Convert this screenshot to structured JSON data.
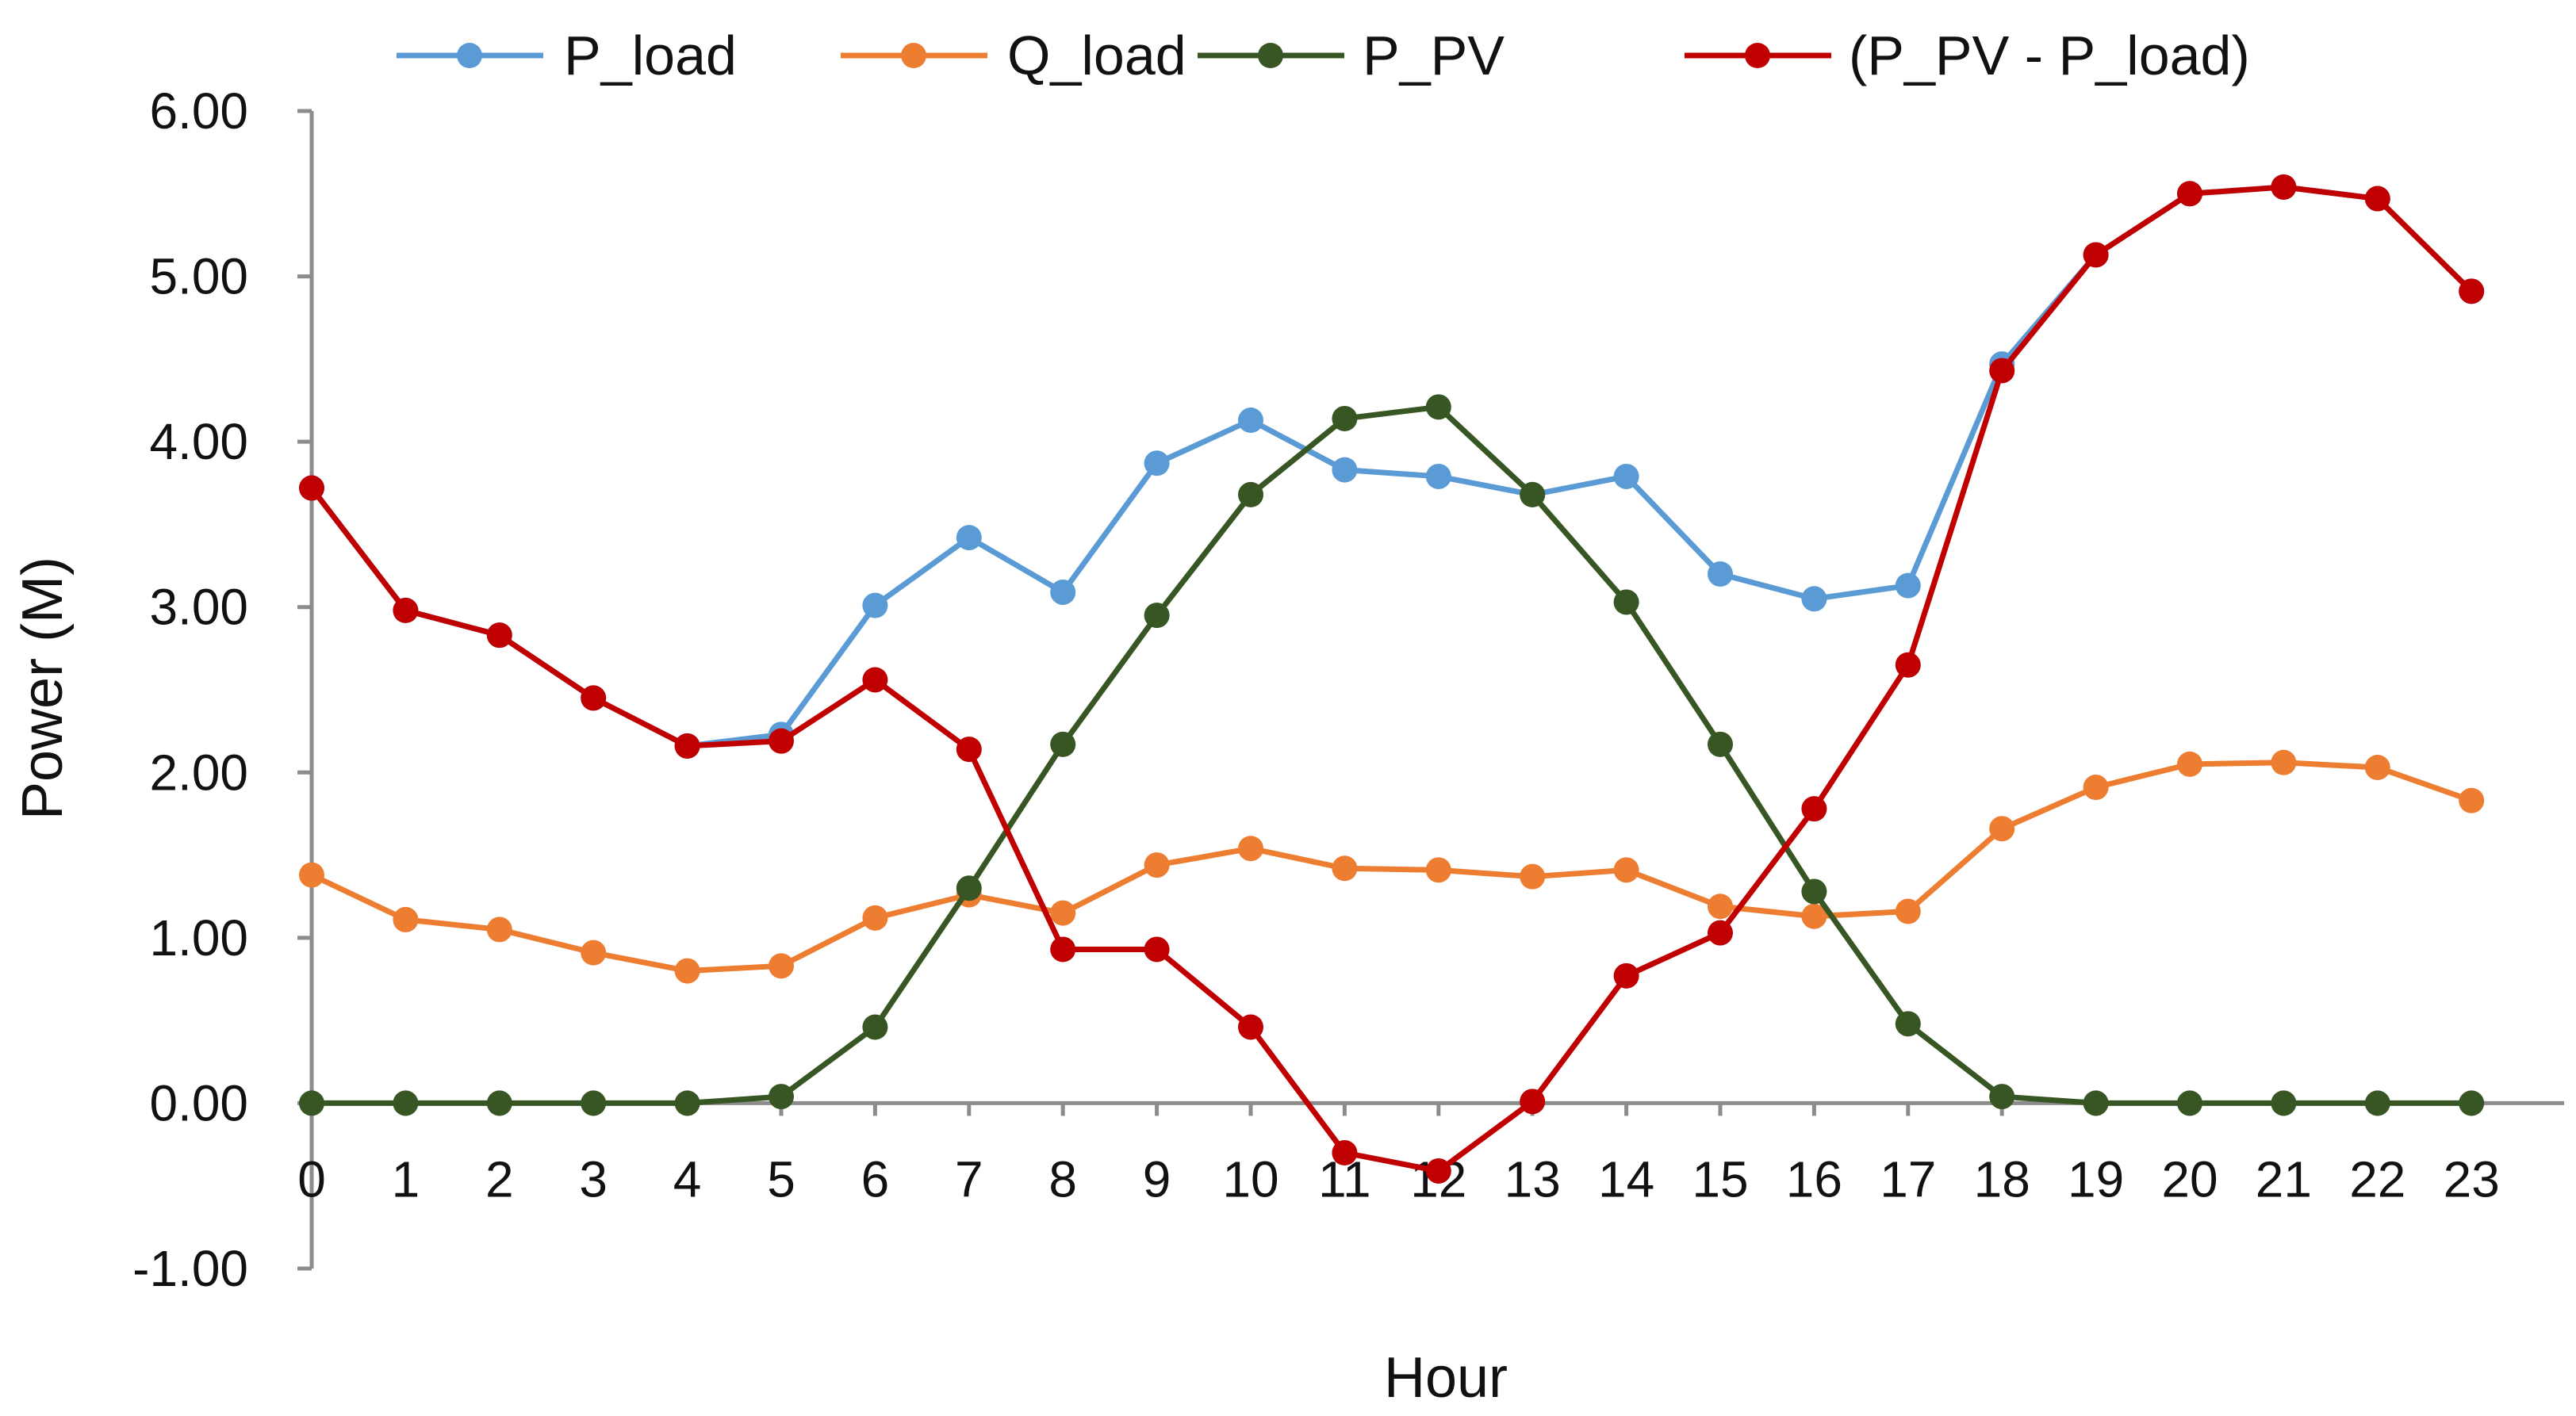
{
  "chart_data": {
    "type": "line",
    "title": "",
    "xlabel": "Hour",
    "ylabel": "Power (M)",
    "ylim": [
      -1,
      6
    ],
    "xlim": [
      0,
      23
    ],
    "grid": false,
    "legend_position": "top",
    "x": [
      0,
      1,
      2,
      3,
      4,
      5,
      6,
      7,
      8,
      9,
      10,
      11,
      12,
      13,
      14,
      15,
      16,
      17,
      18,
      19,
      20,
      21,
      22,
      23
    ],
    "x_tick_labels": [
      "0",
      "1",
      "2",
      "3",
      "4",
      "5",
      "6",
      "7",
      "8",
      "9",
      "10",
      "11",
      "12",
      "13",
      "14",
      "15",
      "16",
      "17",
      "18",
      "19",
      "20",
      "21",
      "22",
      "23"
    ],
    "y_ticks": [
      -1,
      0,
      1,
      2,
      3,
      4,
      5,
      6
    ],
    "y_tick_labels": [
      "-1.00",
      "0.00",
      "1.00",
      "2.00",
      "3.00",
      "4.00",
      "5.00",
      "6.00"
    ],
    "series": [
      {
        "name": "P_load",
        "color": "#5b9bd5",
        "values": [
          3.72,
          2.98,
          2.83,
          2.45,
          2.16,
          2.23,
          3.01,
          3.42,
          3.09,
          3.87,
          4.13,
          3.83,
          3.79,
          3.68,
          3.79,
          3.2,
          3.05,
          3.13,
          4.47,
          5.13,
          5.5,
          5.54,
          5.47,
          4.91
        ]
      },
      {
        "name": "Q_load",
        "color": "#ed7d31",
        "values": [
          1.38,
          1.11,
          1.05,
          0.91,
          0.8,
          0.83,
          1.12,
          1.26,
          1.15,
          1.44,
          1.54,
          1.42,
          1.41,
          1.37,
          1.41,
          1.19,
          1.13,
          1.16,
          1.66,
          1.91,
          2.05,
          2.06,
          2.03,
          1.83
        ]
      },
      {
        "name": "P_PV",
        "color": "#375623",
        "values": [
          0.0,
          0.0,
          0.0,
          0.0,
          0.0,
          0.04,
          0.46,
          1.3,
          2.17,
          2.95,
          3.68,
          4.14,
          4.21,
          3.68,
          3.03,
          2.17,
          1.28,
          0.48,
          0.04,
          0.0,
          0.0,
          0.0,
          0.0,
          0.0
        ]
      },
      {
        "name": "(P_PV - P_load)",
        "color": "#c00000",
        "values": [
          3.72,
          2.98,
          2.83,
          2.45,
          2.16,
          2.19,
          2.56,
          2.14,
          0.93,
          0.93,
          0.46,
          -0.3,
          -0.41,
          0.01,
          0.77,
          1.03,
          1.78,
          2.65,
          4.43,
          5.13,
          5.5,
          5.54,
          5.47,
          4.91
        ]
      }
    ]
  }
}
